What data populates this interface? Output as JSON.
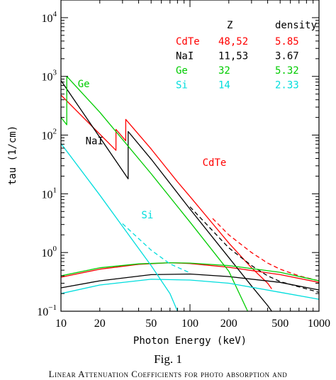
{
  "chart_data": {
    "type": "line",
    "xlabel": "Photon Energy (keV)",
    "ylabel": "tau (1/cm)",
    "xscale": "log",
    "yscale": "log",
    "xlim": [
      10,
      1000
    ],
    "ylim": [
      0.1,
      20000
    ],
    "x_ticks": [
      {
        "value": 10,
        "label": "10"
      },
      {
        "value": 20,
        "label": "20"
      },
      {
        "value": 50,
        "label": "50"
      },
      {
        "value": 100,
        "label": "100"
      },
      {
        "value": 200,
        "label": "200"
      },
      {
        "value": 500,
        "label": "500"
      },
      {
        "value": 1000,
        "label": "1000"
      }
    ],
    "y_ticks": [
      {
        "value": 0.1,
        "base": "10",
        "exp": "−1"
      },
      {
        "value": 1,
        "base": "10",
        "exp": "0"
      },
      {
        "value": 10,
        "base": "10",
        "exp": "1"
      },
      {
        "value": 100,
        "base": "10",
        "exp": "2"
      },
      {
        "value": 1000,
        "base": "10",
        "exp": "3"
      },
      {
        "value": 10000,
        "base": "10",
        "exp": "4"
      }
    ],
    "table": {
      "headers": [
        "Z",
        "density"
      ],
      "rows": [
        {
          "name": "CdTe",
          "z": "48,52",
          "density": "5.85",
          "color": "#ff0000"
        },
        {
          "name": "NaI",
          "z": "11,53",
          "density": "3.67",
          "color": "#000000"
        },
        {
          "name": "Ge",
          "z": "32",
          "density": "5.32",
          "color": "#00cc00"
        },
        {
          "name": "Si",
          "z": "14",
          "density": "2.33",
          "color": "#00dddd"
        }
      ]
    },
    "curve_labels": [
      {
        "text": "Ge",
        "color": "#00cc00",
        "x": 13.5,
        "y": 650
      },
      {
        "text": "NaI",
        "color": "#000000",
        "x": 15.5,
        "y": 70
      },
      {
        "text": "CdTe",
        "color": "#ff0000",
        "x": 125,
        "y": 30
      },
      {
        "text": "Si",
        "color": "#00dddd",
        "x": 42,
        "y": 3.8
      }
    ],
    "series": [
      {
        "material": "CdTe",
        "kind": "photoabsorption",
        "color": "#ff0000",
        "dash": false,
        "points": [
          [
            10,
            480
          ],
          [
            26.7,
            55
          ],
          [
            26.7,
            125
          ],
          [
            31.8,
            80
          ],
          [
            31.8,
            185
          ],
          [
            50,
            58
          ],
          [
            80,
            16
          ],
          [
            100,
            9
          ],
          [
            150,
            3.1
          ],
          [
            200,
            1.45
          ],
          [
            300,
            0.55
          ],
          [
            400,
            0.3
          ],
          [
            430,
            0.24
          ]
        ]
      },
      {
        "material": "CdTe",
        "kind": "total",
        "color": "#ff0000",
        "dash": true,
        "points": [
          [
            150,
            3.8
          ],
          [
            200,
            2
          ],
          [
            300,
            1
          ],
          [
            400,
            0.66
          ],
          [
            500,
            0.52
          ],
          [
            700,
            0.4
          ],
          [
            1000,
            0.33
          ]
        ]
      },
      {
        "material": "CdTe",
        "kind": "compton",
        "color": "#ff0000",
        "dash": false,
        "points": [
          [
            10,
            0.38
          ],
          [
            20,
            0.52
          ],
          [
            40,
            0.63
          ],
          [
            70,
            0.67
          ],
          [
            100,
            0.65
          ],
          [
            200,
            0.56
          ],
          [
            500,
            0.42
          ],
          [
            1000,
            0.31
          ]
        ]
      },
      {
        "material": "NaI",
        "kind": "photoabsorption",
        "color": "#000000",
        "dash": false,
        "points": [
          [
            10,
            850
          ],
          [
            33.2,
            18
          ],
          [
            33.2,
            115
          ],
          [
            50,
            39
          ],
          [
            100,
            5.5
          ],
          [
            200,
            0.82
          ],
          [
            300,
            0.27
          ],
          [
            400,
            0.125
          ],
          [
            430,
            0.1
          ]
        ]
      },
      {
        "material": "NaI",
        "kind": "total",
        "color": "#000000",
        "dash": true,
        "points": [
          [
            100,
            6
          ],
          [
            200,
            1.2
          ],
          [
            300,
            0.6
          ],
          [
            400,
            0.4
          ],
          [
            500,
            0.32
          ],
          [
            700,
            0.26
          ],
          [
            1000,
            0.21
          ]
        ]
      },
      {
        "material": "NaI",
        "kind": "compton",
        "color": "#000000",
        "dash": false,
        "points": [
          [
            10,
            0.25
          ],
          [
            20,
            0.33
          ],
          [
            50,
            0.42
          ],
          [
            100,
            0.43
          ],
          [
            200,
            0.39
          ],
          [
            500,
            0.31
          ],
          [
            1000,
            0.23
          ]
        ]
      },
      {
        "material": "Ge",
        "kind": "photoabsorption",
        "color": "#00cc00",
        "dash": false,
        "points": [
          [
            10,
            200
          ],
          [
            11.1,
            150
          ],
          [
            11.1,
            1000
          ],
          [
            20,
            245
          ],
          [
            50,
            22
          ],
          [
            100,
            3.3
          ],
          [
            200,
            0.48
          ],
          [
            280,
            0.1
          ]
        ]
      },
      {
        "material": "Ge",
        "kind": "compton",
        "color": "#00cc00",
        "dash": false,
        "points": [
          [
            10,
            0.4
          ],
          [
            20,
            0.55
          ],
          [
            40,
            0.64
          ],
          [
            70,
            0.67
          ],
          [
            100,
            0.66
          ],
          [
            200,
            0.6
          ],
          [
            500,
            0.46
          ],
          [
            1000,
            0.33
          ]
        ]
      },
      {
        "material": "Si",
        "kind": "photoabsorption",
        "color": "#00dddd",
        "dash": false,
        "points": [
          [
            10,
            72
          ],
          [
            20,
            9.5
          ],
          [
            30,
            2.8
          ],
          [
            50,
            0.6
          ],
          [
            70,
            0.2
          ],
          [
            80,
            0.1
          ]
        ]
      },
      {
        "material": "Si",
        "kind": "total",
        "color": "#00dddd",
        "dash": true,
        "points": [
          [
            30,
            3.1
          ],
          [
            50,
            1.1
          ],
          [
            70,
            0.64
          ],
          [
            100,
            0.45
          ]
        ]
      },
      {
        "material": "Si",
        "kind": "compton",
        "color": "#00dddd",
        "dash": false,
        "points": [
          [
            10,
            0.2
          ],
          [
            20,
            0.28
          ],
          [
            50,
            0.35
          ],
          [
            100,
            0.34
          ],
          [
            200,
            0.3
          ],
          [
            500,
            0.21
          ],
          [
            1000,
            0.16
          ]
        ]
      }
    ]
  },
  "caption": {
    "figure_label": "Fig. 1",
    "text": "Linear Attenuation Coefficients for photo absorption and"
  }
}
